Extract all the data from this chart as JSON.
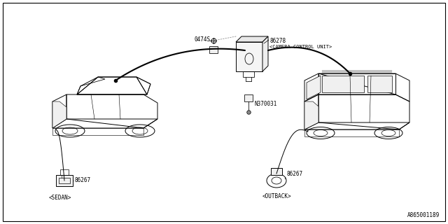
{
  "background_color": "#ffffff",
  "line_color": "#000000",
  "text_color": "#000000",
  "diagram_number": "A865001189",
  "label_86278": "86278",
  "label_cam": "<CAMERA CONTROL UNIT>",
  "label_0474S": "0474S",
  "label_N370031": "N370031",
  "label_86267": "86267",
  "label_sedan": "<SEDAN>",
  "label_outback": "<OUTBACK>",
  "fs_label": 5.5,
  "fs_id": 5.5
}
